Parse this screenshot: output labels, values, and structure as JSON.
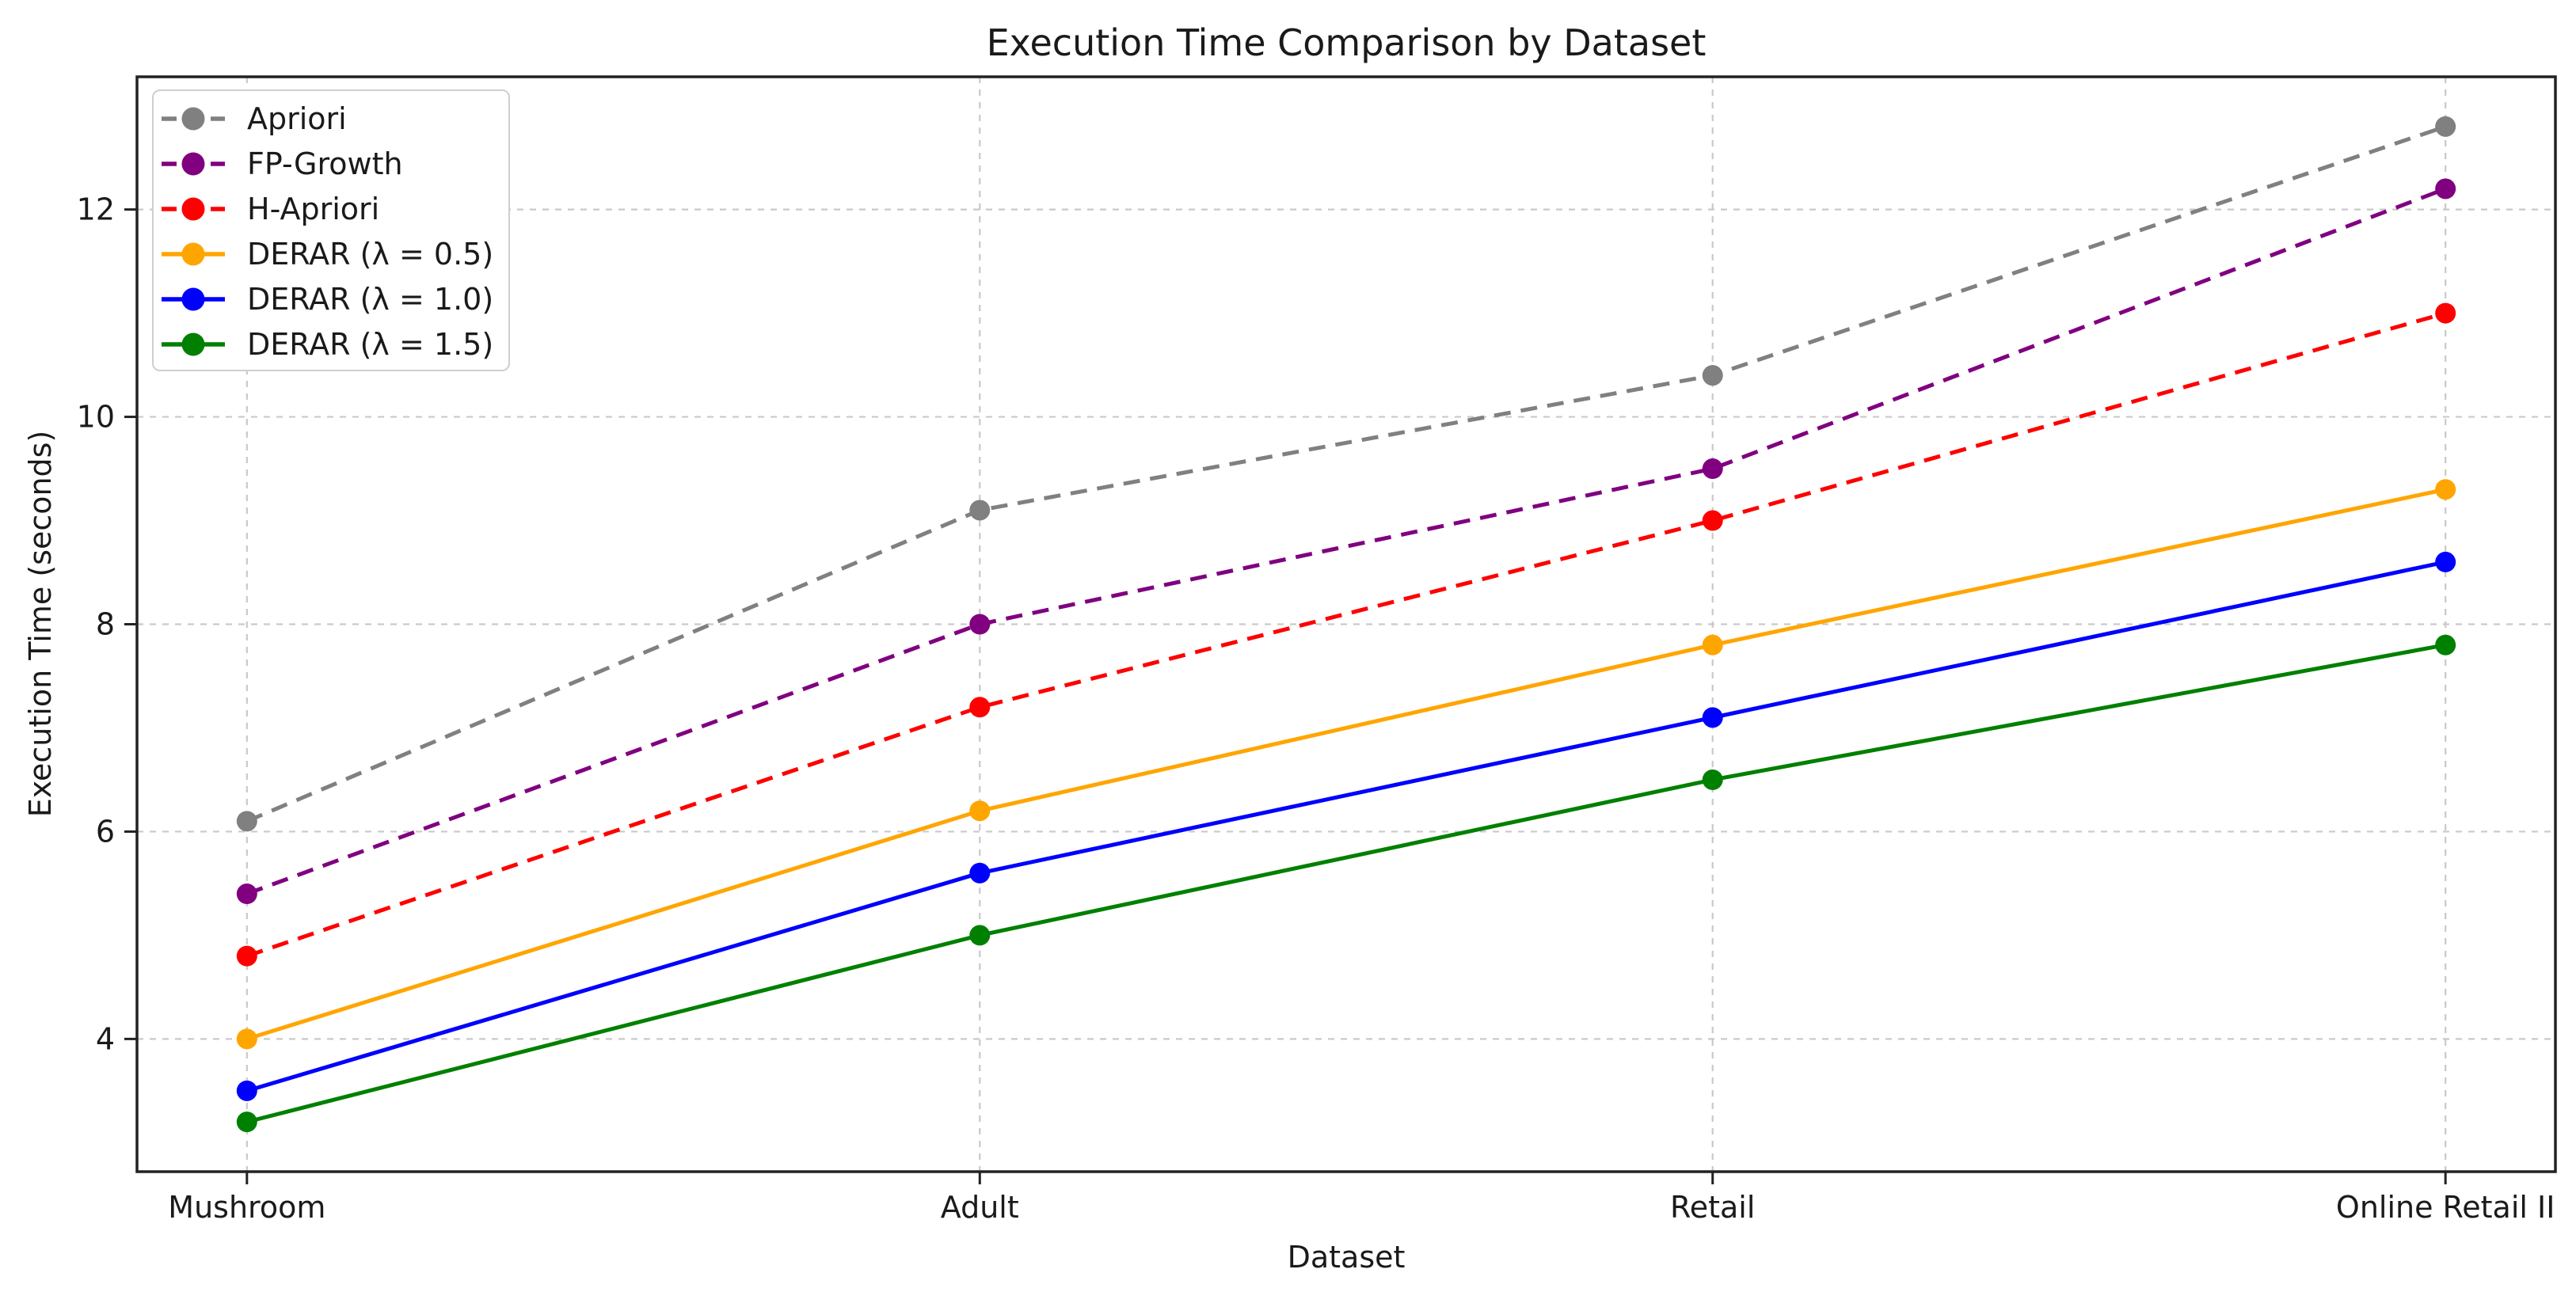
{
  "figure": {
    "background": "#ffffff"
  },
  "chart_data": {
    "type": "line",
    "title": "Execution Time Comparison by Dataset",
    "xlabel": "Dataset",
    "ylabel": "Execution Time (seconds)",
    "categories": [
      "Mushroom",
      "Adult",
      "Retail",
      "Online Retail II"
    ],
    "series": [
      {
        "name": "Apriori",
        "color": "#808080",
        "linestyle": "dashed",
        "marker": "circle",
        "values": [
          6.1,
          9.1,
          10.4,
          12.8
        ]
      },
      {
        "name": "FP-Growth",
        "color": "#800080",
        "linestyle": "dashed",
        "marker": "circle",
        "values": [
          5.4,
          8.0,
          9.5,
          12.2
        ]
      },
      {
        "name": "H-Apriori",
        "color": "#FF0000",
        "linestyle": "dashed",
        "marker": "circle",
        "values": [
          4.8,
          7.2,
          9.0,
          11.0
        ]
      },
      {
        "name": "DERAR (λ = 0.5)",
        "color": "#FFA500",
        "linestyle": "solid",
        "marker": "circle",
        "values": [
          4.0,
          6.2,
          7.8,
          9.3
        ]
      },
      {
        "name": "DERAR (λ = 1.0)",
        "color": "#0000FF",
        "linestyle": "solid",
        "marker": "circle",
        "values": [
          3.5,
          5.6,
          7.1,
          8.6
        ]
      },
      {
        "name": "DERAR (λ = 1.5)",
        "color": "#008000",
        "linestyle": "solid",
        "marker": "circle",
        "values": [
          3.2,
          5.0,
          6.5,
          7.8
        ]
      }
    ],
    "yticks": [
      4,
      6,
      8,
      10,
      12
    ],
    "ylim": [
      2.72,
      13.28
    ],
    "grid": true,
    "legend_position": "upper left",
    "grid_color": "#c9c9c9",
    "spine_color": "#222222",
    "text_color": "#1a1a1a"
  }
}
